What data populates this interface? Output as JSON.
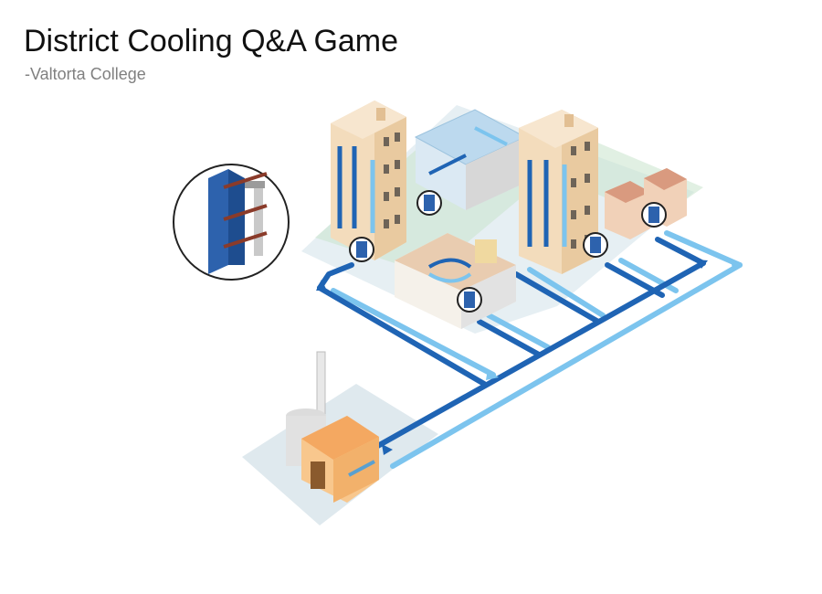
{
  "slide": {
    "title": "District Cooling Q&A Game",
    "subtitle": "-Valtorta College"
  },
  "illustration": {
    "subject": "district-cooling-network",
    "colors": {
      "supply_pipe": "#1f64b4",
      "return_pipe": "#7cc4ee",
      "building_wall": "#f3dcbc",
      "ground": "#dfe9ee",
      "plant_wall": "#f4a861",
      "heat_exchanger": "#2d62ad"
    }
  }
}
